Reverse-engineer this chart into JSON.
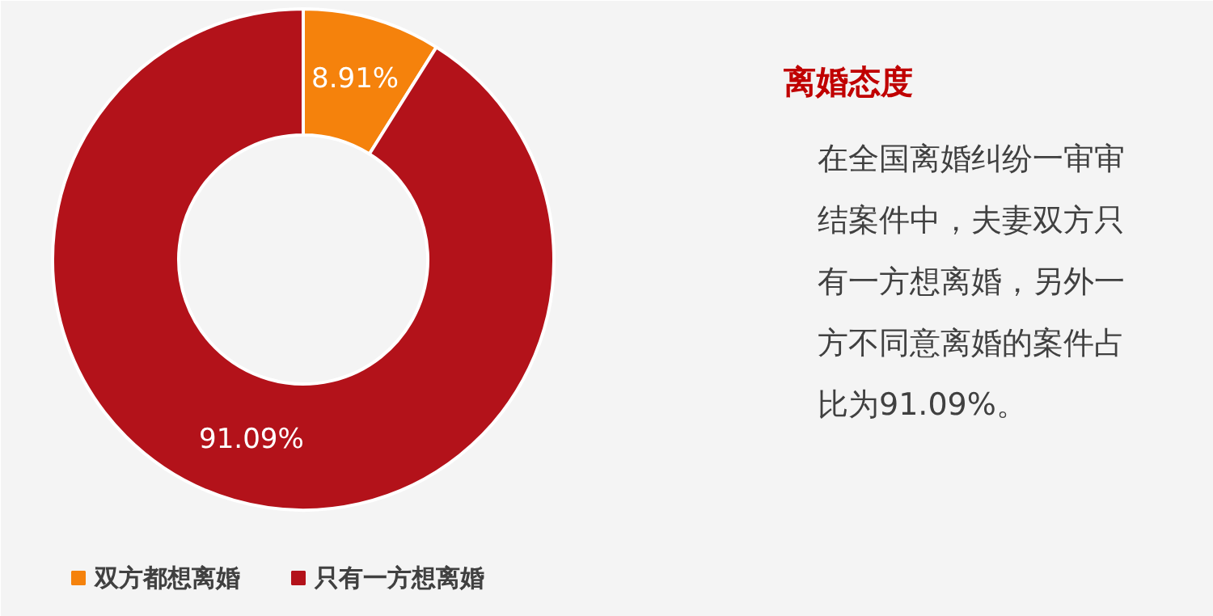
{
  "chart_data": {
    "type": "donut",
    "title": "离婚态度",
    "categories": [
      "双方都想离婚",
      "只有一方想离婚"
    ],
    "values": [
      8.91,
      91.09
    ],
    "colors": [
      "#f5820c",
      "#b3121a"
    ],
    "value_labels": [
      "8.91%",
      "91.09%"
    ],
    "legend": "bottom left",
    "annotations": [
      "在全国离婚纠纷一审审结案件中，夫妻双方只有一方想离婚，另外一方不同意离婚的案件占比为91.09%。"
    ]
  }
}
